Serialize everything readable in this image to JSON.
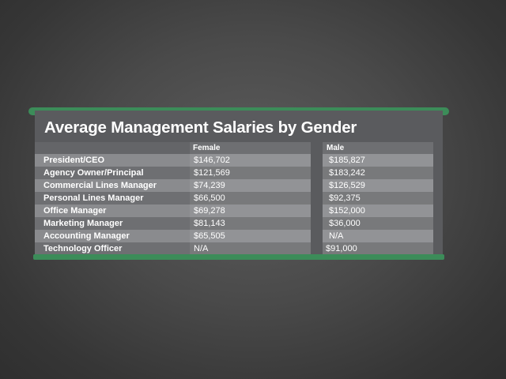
{
  "chart_data": {
    "type": "table",
    "title": "Average Management Salaries by Gender",
    "columns": [
      "Female",
      "Male"
    ],
    "rows": [
      {
        "label": "President/CEO",
        "female": "$146,702",
        "male": "$185,827"
      },
      {
        "label": "Agency Owner/Principal",
        "female": "$121,569",
        "male": "$183,242"
      },
      {
        "label": "Commercial Lines Manager",
        "female": "$74,239",
        "male": "$126,529"
      },
      {
        "label": "Personal Lines Manager",
        "female": "$66,500",
        "male": "$92,375"
      },
      {
        "label": "Office Manager",
        "female": "$69,278",
        "male": "$152,000"
      },
      {
        "label": "Marketing Manager",
        "female": "$81,143",
        "male": "$36,000"
      },
      {
        "label": "Accounting Manager",
        "female": "$65,505",
        "male": "N/A"
      },
      {
        "label": "Technology Officer",
        "female": "N/A",
        "male": "$91,000"
      }
    ]
  },
  "colors": {
    "accent": "#3c8c59",
    "panel": "#5a5b5e",
    "stripe_light": "#8a8b8e",
    "stripe_dark": "#6e6f72",
    "text": "#ffffff"
  }
}
